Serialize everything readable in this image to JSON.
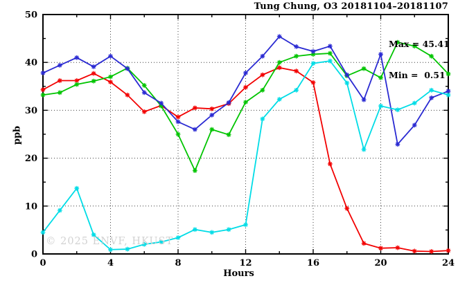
{
  "header": {
    "title": "Tung Chung, O3 20181104–20181107"
  },
  "annotations": {
    "max_label": "Max = 45.41",
    "min_label": "Min =  0.51"
  },
  "watermark": "© 2025 ENVF, HKUST",
  "chart_data": {
    "type": "line",
    "title": "Tung Chung, O3 20181104–20181107",
    "xlabel": "Hours",
    "ylabel": "ppb",
    "xlim": [
      0,
      24
    ],
    "ylim": [
      0,
      50
    ],
    "x_major_ticks": [
      0,
      4,
      8,
      12,
      16,
      20,
      24
    ],
    "x_minor_step": 2,
    "y_major_ticks": [
      0,
      10,
      20,
      30,
      40,
      50
    ],
    "y_minor_step": 5,
    "grid_x": [
      4,
      8,
      12,
      16,
      20
    ],
    "grid_y": [
      10,
      20,
      30,
      40
    ],
    "legend_position": "none",
    "max_value": 45.41,
    "min_value": 0.51,
    "x": [
      0,
      1,
      2,
      3,
      4,
      5,
      6,
      7,
      8,
      9,
      10,
      11,
      12,
      13,
      14,
      15,
      16,
      17,
      18,
      19,
      20,
      21,
      22,
      23,
      24
    ],
    "series": [
      {
        "name": "series-red",
        "color": "#f20000",
        "values": [
          34.3,
          36.2,
          36.2,
          37.7,
          35.9,
          33.2,
          29.7,
          31.0,
          28.6,
          30.5,
          30.3,
          31.4,
          34.8,
          37.4,
          38.9,
          38.2,
          35.8,
          18.8,
          9.5,
          2.2,
          1.2,
          1.3,
          0.6,
          0.51,
          0.7
        ]
      },
      {
        "name": "series-green",
        "color": "#00c400",
        "values": [
          33.2,
          33.7,
          35.4,
          36.1,
          37.0,
          38.8,
          35.2,
          30.9,
          25.0,
          17.4,
          26.0,
          24.9,
          31.7,
          34.2,
          40.0,
          41.3,
          41.7,
          41.9,
          37.2,
          38.7,
          36.8,
          44.2,
          43.4,
          41.3,
          37.6
        ]
      },
      {
        "name": "series-blue",
        "color": "#2a2ad2",
        "values": [
          37.8,
          39.4,
          41.0,
          39.1,
          41.3,
          38.7,
          33.7,
          31.5,
          27.6,
          26.0,
          29.0,
          31.6,
          37.8,
          41.3,
          45.41,
          43.3,
          42.3,
          43.4,
          37.4,
          32.2,
          41.7,
          22.9,
          26.9,
          32.6,
          34.0
        ]
      },
      {
        "name": "series-cyan",
        "color": "#00dce6",
        "values": [
          4.5,
          9.1,
          13.7,
          4.0,
          0.9,
          1.0,
          2.0,
          2.5,
          3.4,
          5.1,
          4.5,
          5.1,
          6.1,
          28.2,
          32.3,
          34.2,
          39.8,
          40.3,
          35.7,
          21.8,
          30.9,
          30.1,
          31.5,
          34.2,
          33.2
        ]
      }
    ]
  }
}
